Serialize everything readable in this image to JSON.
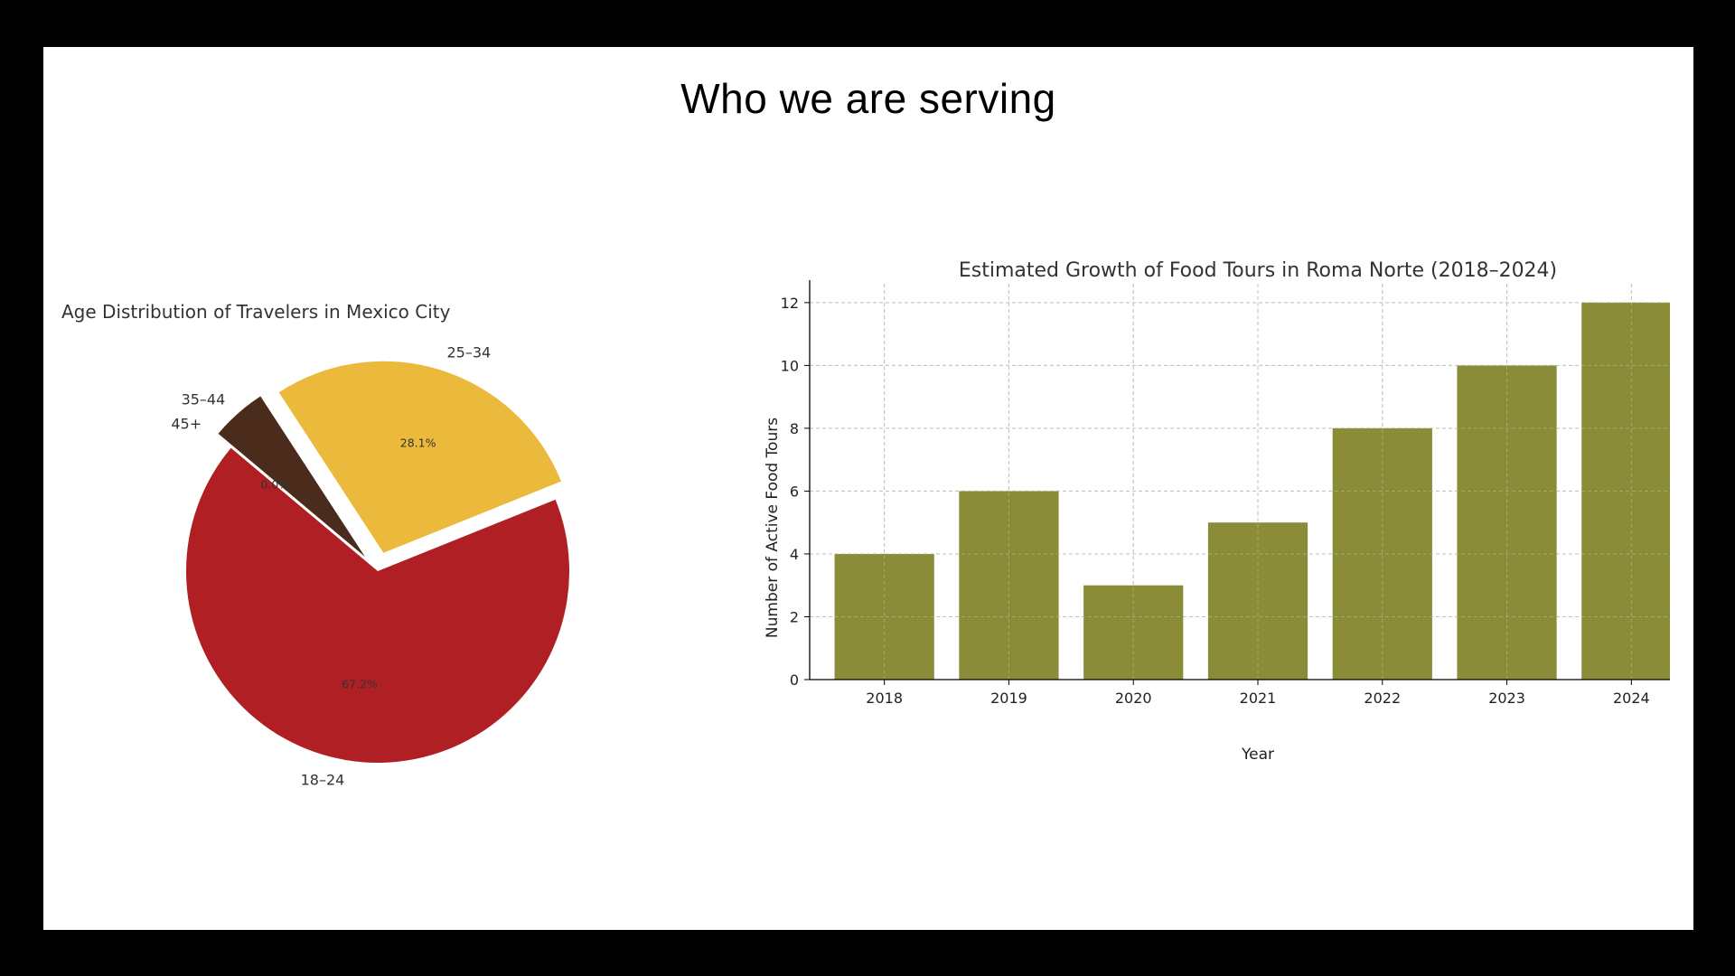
{
  "slide": {
    "title": "Who we are serving"
  },
  "chart_data": [
    {
      "type": "pie",
      "title": "Age Distribution of Travelers in Mexico City",
      "slices": [
        {
          "label": "18–24",
          "value": 67.2,
          "pct_label": "67.2%",
          "color": "#B01F24",
          "explode": 0
        },
        {
          "label": "25–34",
          "value": 28.1,
          "pct_label": "28.1%",
          "color": "#EBB93B",
          "explode": 0.1
        },
        {
          "label": "35–44",
          "value": 4.7,
          "pct_label": "",
          "color": "#4A2B1C",
          "explode": 0.1
        },
        {
          "label": "45+",
          "value": 0.0,
          "pct_label": "0.0%",
          "color": "#B01F24",
          "explode": 0.1
        }
      ],
      "legend": "none"
    },
    {
      "type": "bar",
      "title": "Estimated Growth of Food Tours in Roma Norte (2018–2024)",
      "categories": [
        "2018",
        "2019",
        "2020",
        "2021",
        "2022",
        "2023",
        "2024"
      ],
      "values": [
        4,
        6,
        3,
        5,
        8,
        10,
        12
      ],
      "xlabel": "Year",
      "ylabel": "Number of Active Food Tours",
      "ylim": [
        0,
        12.6
      ],
      "yticks": [
        0,
        2,
        4,
        6,
        8,
        10,
        12
      ],
      "color": "#8B8C37",
      "grid": true
    }
  ]
}
